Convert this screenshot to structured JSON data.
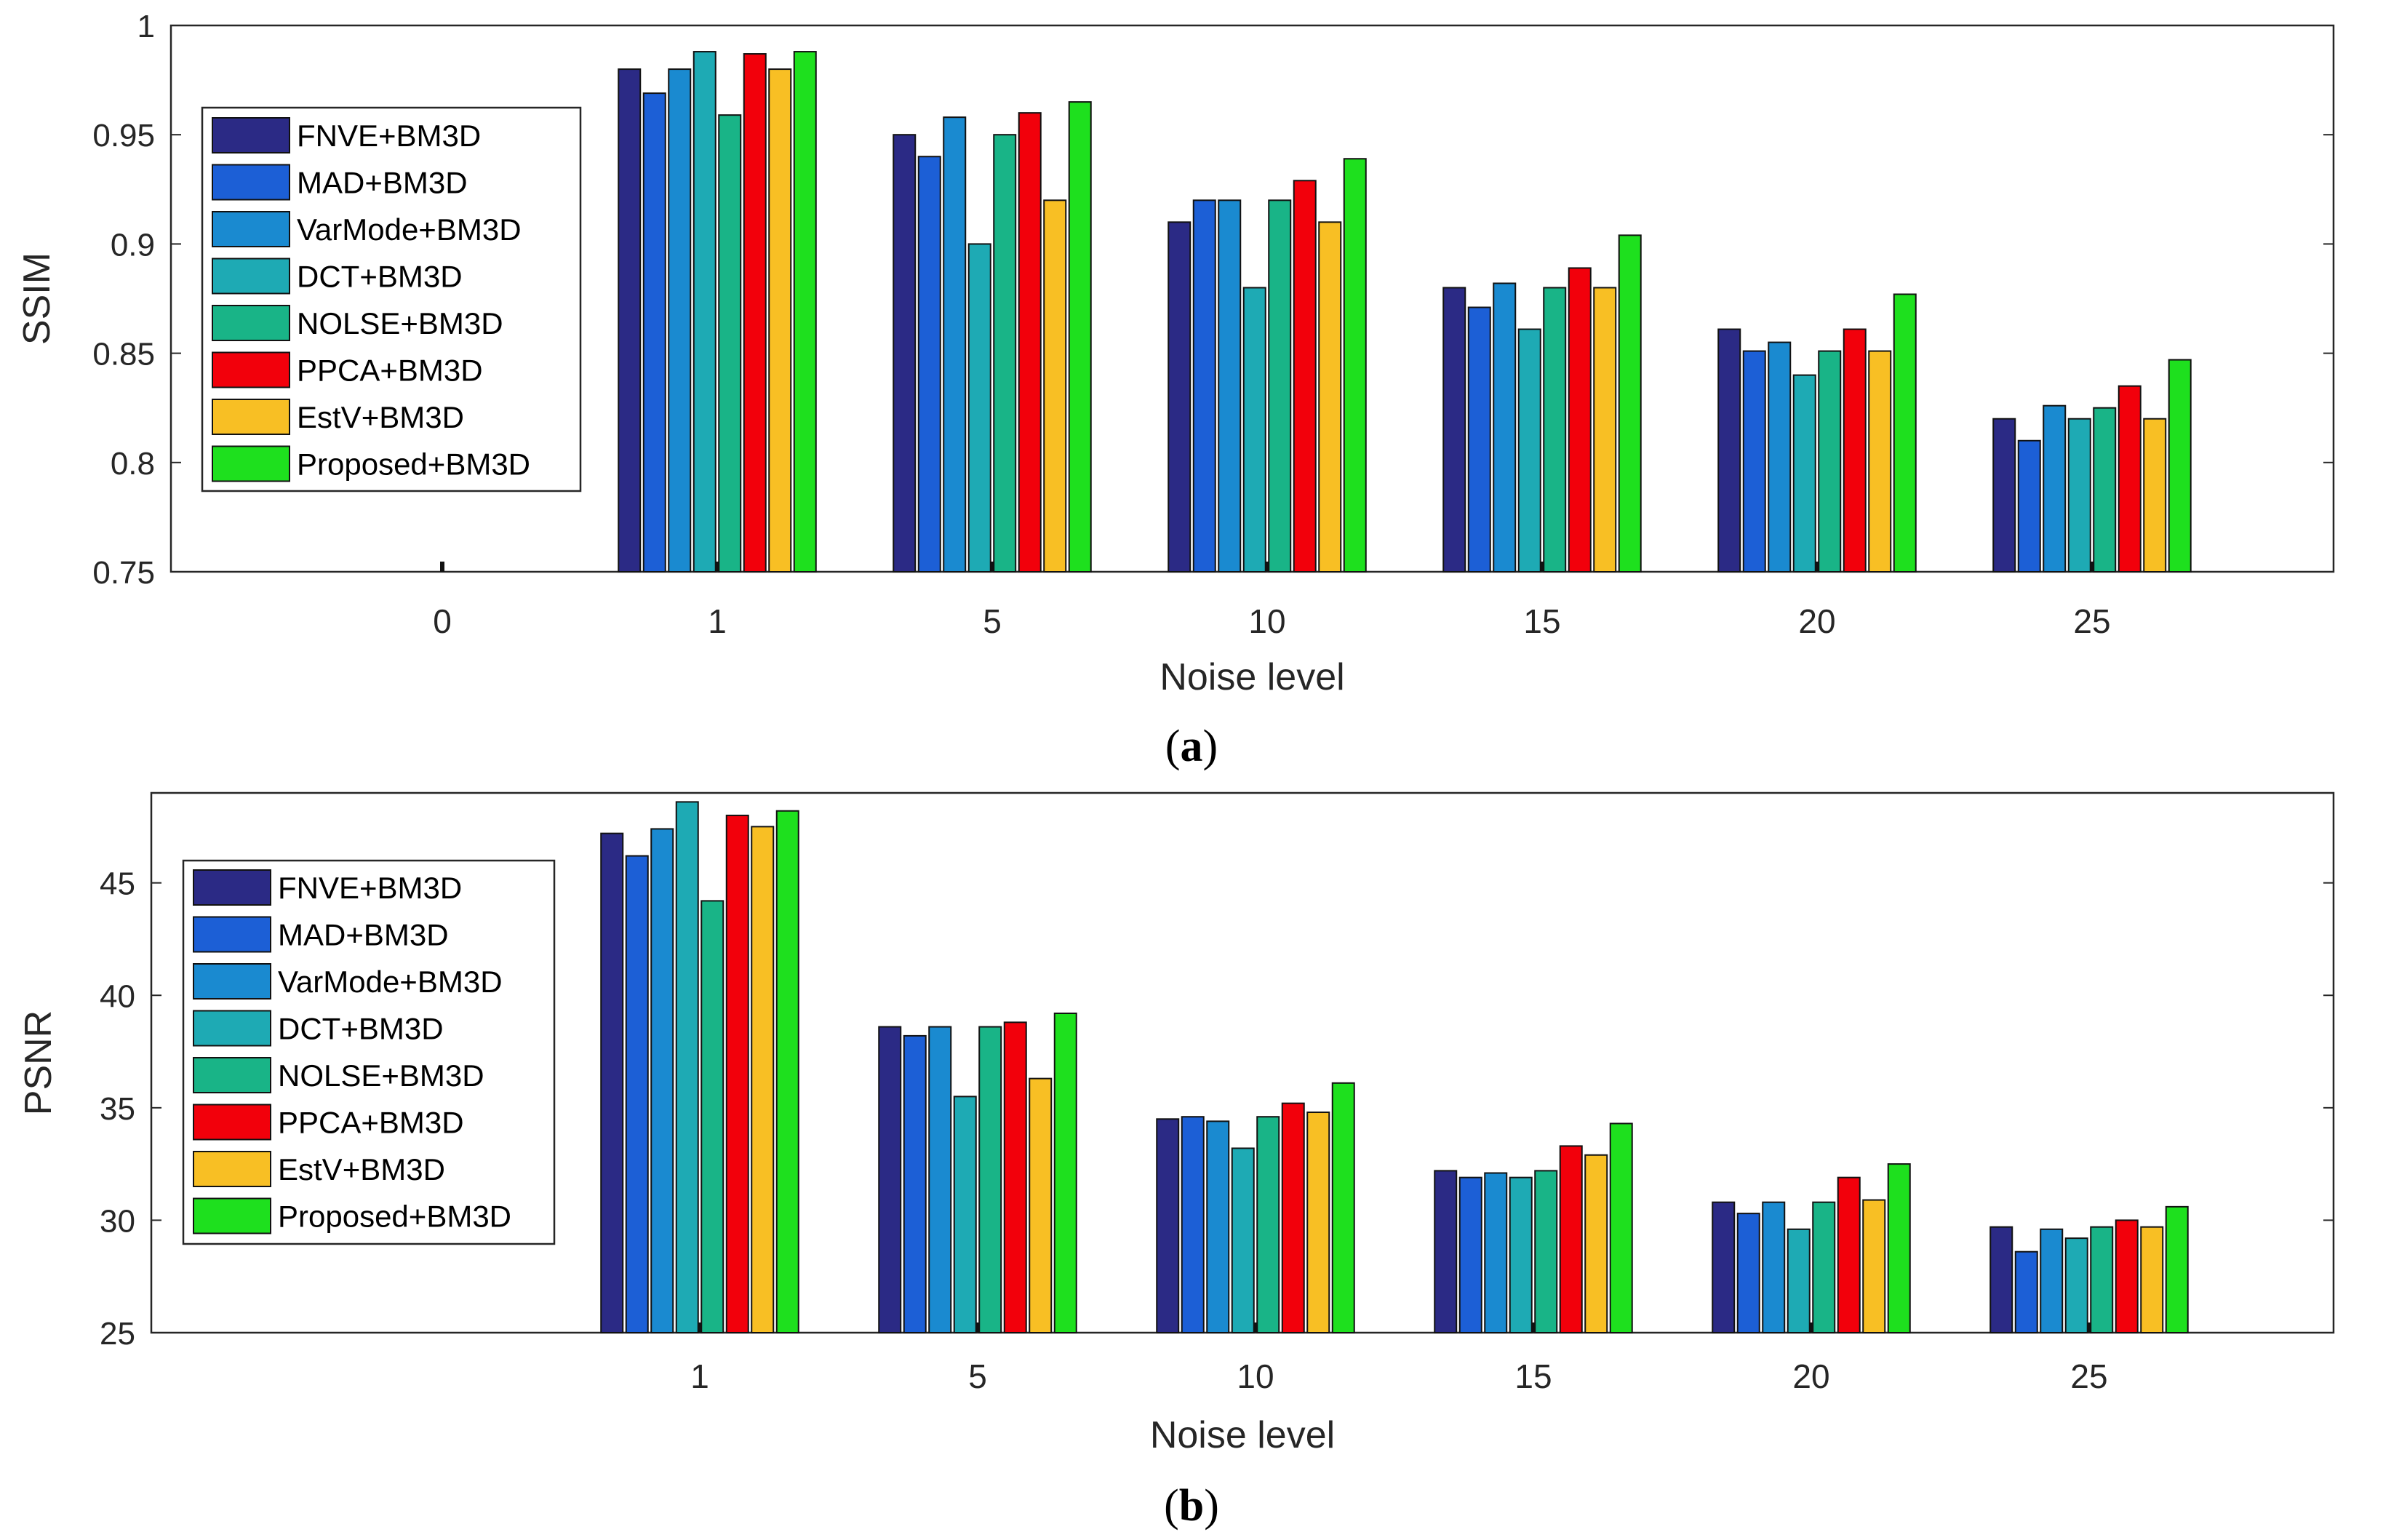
{
  "series_colors": [
    "#2b2a85",
    "#1c5fd6",
    "#1a8ad0",
    "#1eaab4",
    "#19b487",
    "#f2000b",
    "#f8bf24",
    "#1ee01e"
  ],
  "chart_data": [
    {
      "id": "ssim",
      "type": "bar",
      "caption": {
        "label": "a"
      },
      "xlabel": "Noise level",
      "ylabel": "SSIM",
      "categories": [
        "0",
        "1",
        "5",
        "10",
        "15",
        "20",
        "25"
      ],
      "ylim": [
        0.75,
        1
      ],
      "yticks": [
        0.75,
        0.8,
        0.85,
        0.9,
        0.95,
        1
      ],
      "ytick_labels": [
        "0.75",
        "0.8",
        "0.85",
        "0.9",
        "0.95",
        "1"
      ],
      "legend_position": "upper-left",
      "series": [
        {
          "name": "FNVE+BM3D",
          "values": [
            null,
            0.98,
            0.95,
            0.91,
            0.88,
            0.861,
            0.82
          ]
        },
        {
          "name": "MAD+BM3D",
          "values": [
            null,
            0.969,
            0.94,
            0.92,
            0.871,
            0.851,
            0.81
          ]
        },
        {
          "name": "VarMode+BM3D",
          "values": [
            null,
            0.98,
            0.958,
            0.92,
            0.882,
            0.855,
            0.826
          ]
        },
        {
          "name": "DCT+BM3D",
          "values": [
            null,
            0.988,
            0.9,
            0.88,
            0.861,
            0.84,
            0.82
          ]
        },
        {
          "name": "NOLSE+BM3D",
          "values": [
            null,
            0.959,
            0.95,
            0.92,
            0.88,
            0.851,
            0.825
          ]
        },
        {
          "name": "PPCA+BM3D",
          "values": [
            null,
            0.987,
            0.96,
            0.929,
            0.889,
            0.861,
            0.835
          ]
        },
        {
          "name": "EstV+BM3D",
          "values": [
            null,
            0.98,
            0.92,
            0.91,
            0.88,
            0.851,
            0.82
          ]
        },
        {
          "name": "Proposed+BM3D",
          "values": [
            null,
            0.988,
            0.965,
            0.939,
            0.904,
            0.877,
            0.847
          ]
        }
      ]
    },
    {
      "id": "psnr",
      "type": "bar",
      "caption": {
        "label": "b"
      },
      "xlabel": "Noise level",
      "ylabel": "PSNR",
      "categories": [
        "1",
        "5",
        "10",
        "15",
        "20",
        "25"
      ],
      "ylim": [
        25,
        49
      ],
      "yticks": [
        25,
        30,
        35,
        40,
        45
      ],
      "ytick_labels": [
        "25",
        "30",
        "35",
        "40",
        "45"
      ],
      "legend_position": "upper-left",
      "series": [
        {
          "name": "FNVE+BM3D",
          "values": [
            47.2,
            38.6,
            34.5,
            32.2,
            30.8,
            29.7
          ]
        },
        {
          "name": "MAD+BM3D",
          "values": [
            46.2,
            38.2,
            34.6,
            31.9,
            30.3,
            28.6
          ]
        },
        {
          "name": "VarMode+BM3D",
          "values": [
            47.4,
            38.6,
            34.4,
            32.1,
            30.8,
            29.6
          ]
        },
        {
          "name": "DCT+BM3D",
          "values": [
            48.6,
            35.5,
            33.2,
            31.9,
            29.6,
            29.2
          ]
        },
        {
          "name": "NOLSE+BM3D",
          "values": [
            44.2,
            38.6,
            34.6,
            32.2,
            30.8,
            29.7
          ]
        },
        {
          "name": "PPCA+BM3D",
          "values": [
            48.0,
            38.8,
            35.2,
            33.3,
            31.9,
            30.0
          ]
        },
        {
          "name": "EstV+BM3D",
          "values": [
            47.5,
            36.3,
            34.8,
            32.9,
            30.9,
            29.7
          ]
        },
        {
          "name": "Proposed+BM3D",
          "values": [
            48.2,
            39.2,
            36.1,
            34.3,
            32.5,
            30.6
          ]
        }
      ]
    }
  ]
}
